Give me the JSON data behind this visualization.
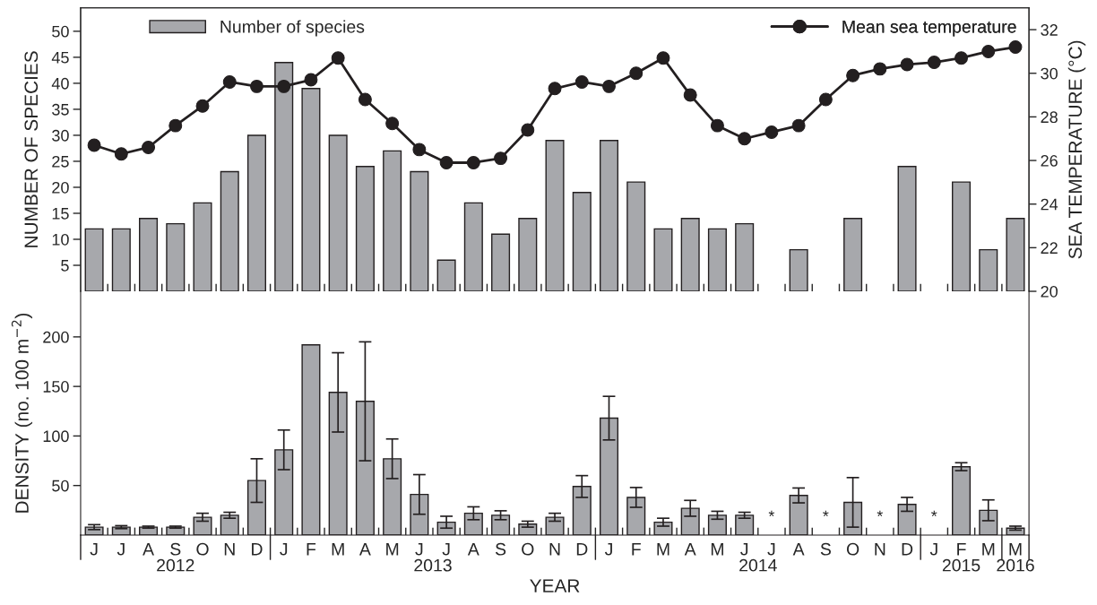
{
  "chart_data": [
    {
      "type": "bar",
      "categories": [
        null,
        null,
        null,
        null,
        null,
        null,
        null,
        null,
        null,
        null,
        null,
        null,
        null,
        null,
        null,
        null,
        null,
        null,
        null,
        null,
        null,
        null,
        null,
        null,
        null,
        null,
        null,
        null,
        null,
        null,
        null,
        null,
        null,
        null,
        null
      ],
      "ylabel": "NUMBER OF SPECIES",
      "y2label": "SEA TEMPERATURE (°C)",
      "ylim": [
        0,
        54.5
      ],
      "yticks": [
        5,
        10,
        15,
        20,
        25,
        30,
        35,
        40,
        45,
        50
      ],
      "y2lim": [
        20,
        33
      ],
      "y2ticks": [
        20,
        22,
        24,
        26,
        28,
        30,
        32
      ],
      "tick_labels": "y",
      "legend": "top",
      "grid": false,
      "marker": "circle",
      "series": [
        {
          "name": "Number of species",
          "color": "#a7a8ac",
          "values": [
            12,
            12,
            14,
            13,
            17,
            23,
            30,
            44,
            39,
            30,
            24,
            27,
            23,
            6,
            17,
            11,
            14,
            29,
            19,
            29,
            21,
            12,
            14,
            12,
            13,
            null,
            8,
            null,
            14,
            null,
            24,
            null,
            21,
            8,
            14
          ]
        },
        {
          "name": "Mean sea temperature",
          "type": "line",
          "axis": "y2",
          "color": "#231f20",
          "values": [
            26.7,
            26.3,
            26.6,
            27.6,
            28.5,
            29.6,
            29.4,
            29.4,
            29.7,
            30.7,
            28.8,
            27.7,
            26.5,
            25.9,
            25.9,
            26.1,
            27.4,
            29.3,
            29.6,
            29.4,
            30.0,
            30.7,
            29.0,
            27.6,
            27.0,
            27.3,
            27.6,
            28.8,
            29.9,
            30.2,
            30.4,
            30.5,
            30.7,
            31.0,
            31.2
          ]
        }
      ]
    },
    {
      "type": "bar",
      "categories": [
        "J",
        "J",
        "A",
        "S",
        "O",
        "N",
        "D",
        "J",
        "F",
        "M",
        "A",
        "M",
        "J",
        "J",
        "A",
        "S",
        "O",
        "N",
        "D",
        "J",
        "F",
        "M",
        "A",
        "M",
        "J",
        "J",
        "A",
        "S",
        "O",
        "N",
        "D",
        "J",
        "F",
        "M",
        "M"
      ],
      "ylabel": "DENSITY (no. 100 m$^{−2}$)",
      "xlabel": "YEAR",
      "ylim": [
        0,
        246
      ],
      "yticks": [
        50,
        100,
        150,
        200
      ],
      "grid": false,
      "color": "#a7a8ac",
      "values": [
        8,
        8,
        8,
        8,
        18,
        20,
        55,
        86,
        192,
        144,
        135,
        77,
        41,
        13,
        22,
        20,
        11,
        18,
        49,
        118,
        38,
        13,
        27,
        20,
        20,
        null,
        40,
        null,
        33,
        null,
        31,
        null,
        69,
        25,
        7
      ],
      "errors": [
        2.5,
        1.5,
        1,
        1,
        4,
        3,
        22,
        20,
        null,
        40,
        60,
        20,
        20,
        6,
        6.5,
        4.5,
        3,
        4,
        11,
        22,
        10,
        4,
        8,
        4,
        3,
        null,
        7.5,
        null,
        25,
        null,
        7,
        null,
        4,
        10.5,
        2
      ],
      "value_labels": [
        null,
        null,
        null,
        null,
        null,
        null,
        null,
        null,
        null,
        null,
        null,
        null,
        null,
        null,
        null,
        null,
        null,
        null,
        null,
        null,
        null,
        null,
        null,
        null,
        null,
        "*",
        null,
        "*",
        null,
        "*",
        null,
        "*",
        null,
        null,
        null
      ],
      "annotations": [
        "2012",
        "2013",
        "2014",
        "2015",
        "2016"
      ]
    }
  ]
}
